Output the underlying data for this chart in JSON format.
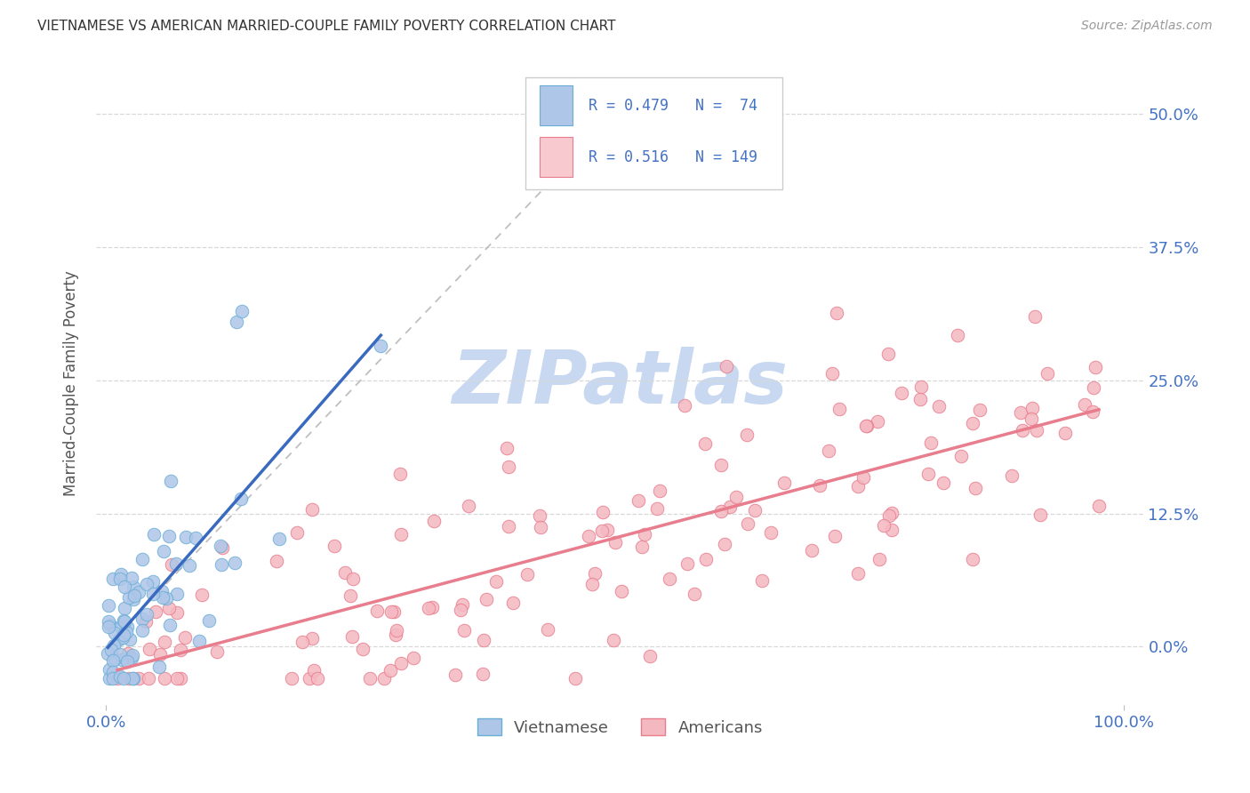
{
  "title": "VIETNAMESE VS AMERICAN MARRIED-COUPLE FAMILY POVERTY CORRELATION CHART",
  "source": "Source: ZipAtlas.com",
  "ylabel_label": "Married-Couple Family Poverty",
  "xlim": [
    -0.01,
    1.02
  ],
  "ylim": [
    -0.055,
    0.55
  ],
  "viet_color": "#aec6e8",
  "viet_edge_color": "#6aaed6",
  "amer_color": "#f4b8c1",
  "amer_edge_color": "#e87d8d",
  "viet_line_color": "#3a6abf",
  "amer_line_color": "#e87d8d",
  "dashed_line_color": "#b8b8b8",
  "legend_box_viet": "#aec6e8",
  "legend_box_amer": "#f9c9d0",
  "R_viet": 0.479,
  "N_viet": 74,
  "R_amer": 0.516,
  "N_amer": 149,
  "watermark_color": "#c8d8f0",
  "background_color": "#ffffff",
  "grid_color": "#d8d8d8",
  "title_color": "#333333",
  "axis_label_color": "#555555",
  "tick_label_color": "#4472c4",
  "ytick_vals": [
    0.0,
    0.125,
    0.25,
    0.375,
    0.5
  ],
  "ytick_labels": [
    "0.0%",
    "12.5%",
    "25.0%",
    "37.5%",
    "50.0%"
  ],
  "xtick_vals": [
    0.0,
    1.0
  ],
  "xtick_labels": [
    "0.0%",
    "100.0%"
  ]
}
